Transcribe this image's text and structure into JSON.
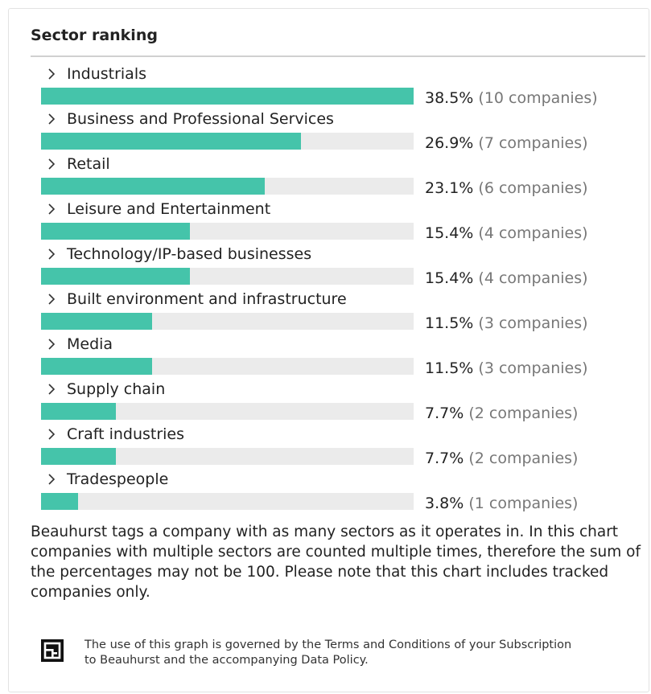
{
  "card": {
    "title": "Sector ranking"
  },
  "chart_data": {
    "type": "bar",
    "orientation": "horizontal",
    "title": "Sector ranking",
    "xlim": [
      0,
      38.5
    ],
    "bar_color": "#45c4aa",
    "track_color": "#ebebeb",
    "categories": [
      "Industrials",
      "Business and Professional Services",
      "Retail",
      "Leisure and Entertainment",
      "Technology/IP-based businesses",
      "Built environment and infrastructure",
      "Media",
      "Supply chain",
      "Craft industries",
      "Tradespeople"
    ],
    "values": [
      38.5,
      26.9,
      23.1,
      15.4,
      15.4,
      11.5,
      11.5,
      7.7,
      7.7,
      3.8
    ],
    "value_labels": [
      "38.5%",
      "26.9%",
      "23.1%",
      "15.4%",
      "15.4%",
      "11.5%",
      "11.5%",
      "7.7%",
      "7.7%",
      "3.8%"
    ],
    "count_labels": [
      "(10 companies)",
      "(7 companies)",
      "(6 companies)",
      "(4 companies)",
      "(4 companies)",
      "(3 companies)",
      "(3 companies)",
      "(2 companies)",
      "(2 companies)",
      "(1 companies)"
    ]
  },
  "icons": {
    "row_expand": "chevron-right-icon",
    "brand": "beauhurst-logo"
  },
  "note": "Beauhurst tags a company with as many sectors as it operates in. In this chart companies with multiple sectors are counted multiple times, therefore the sum of the percentages may not be 100. Please note that this chart includes tracked companies only.",
  "terms": "The use of this graph is governed by the Terms and Conditions of your Subscription to Beauhurst and the accompanying Data Policy."
}
